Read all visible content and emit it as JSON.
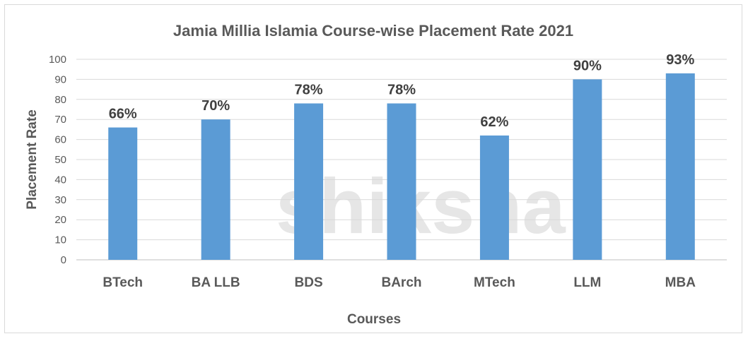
{
  "chart_data": {
    "type": "bar",
    "title": "Jamia Millia Islamia Course-wise Placement Rate 2021",
    "xlabel": "Courses",
    "ylabel": "Placement Rate",
    "categories": [
      "BTech",
      "BA LLB",
      "BDS",
      "BArch",
      "MTech",
      "LLM",
      "MBA"
    ],
    "values": [
      66,
      70,
      78,
      78,
      62,
      90,
      93
    ],
    "data_labels": [
      "66%",
      "70%",
      "78%",
      "78%",
      "62%",
      "90%",
      "93%"
    ],
    "ylim": [
      0,
      100
    ],
    "yticks": [
      0,
      10,
      20,
      30,
      40,
      50,
      60,
      70,
      80,
      90,
      100
    ],
    "grid": true,
    "legend": "none",
    "bar_color": "#5b9bd5",
    "watermark": "shiksha"
  }
}
